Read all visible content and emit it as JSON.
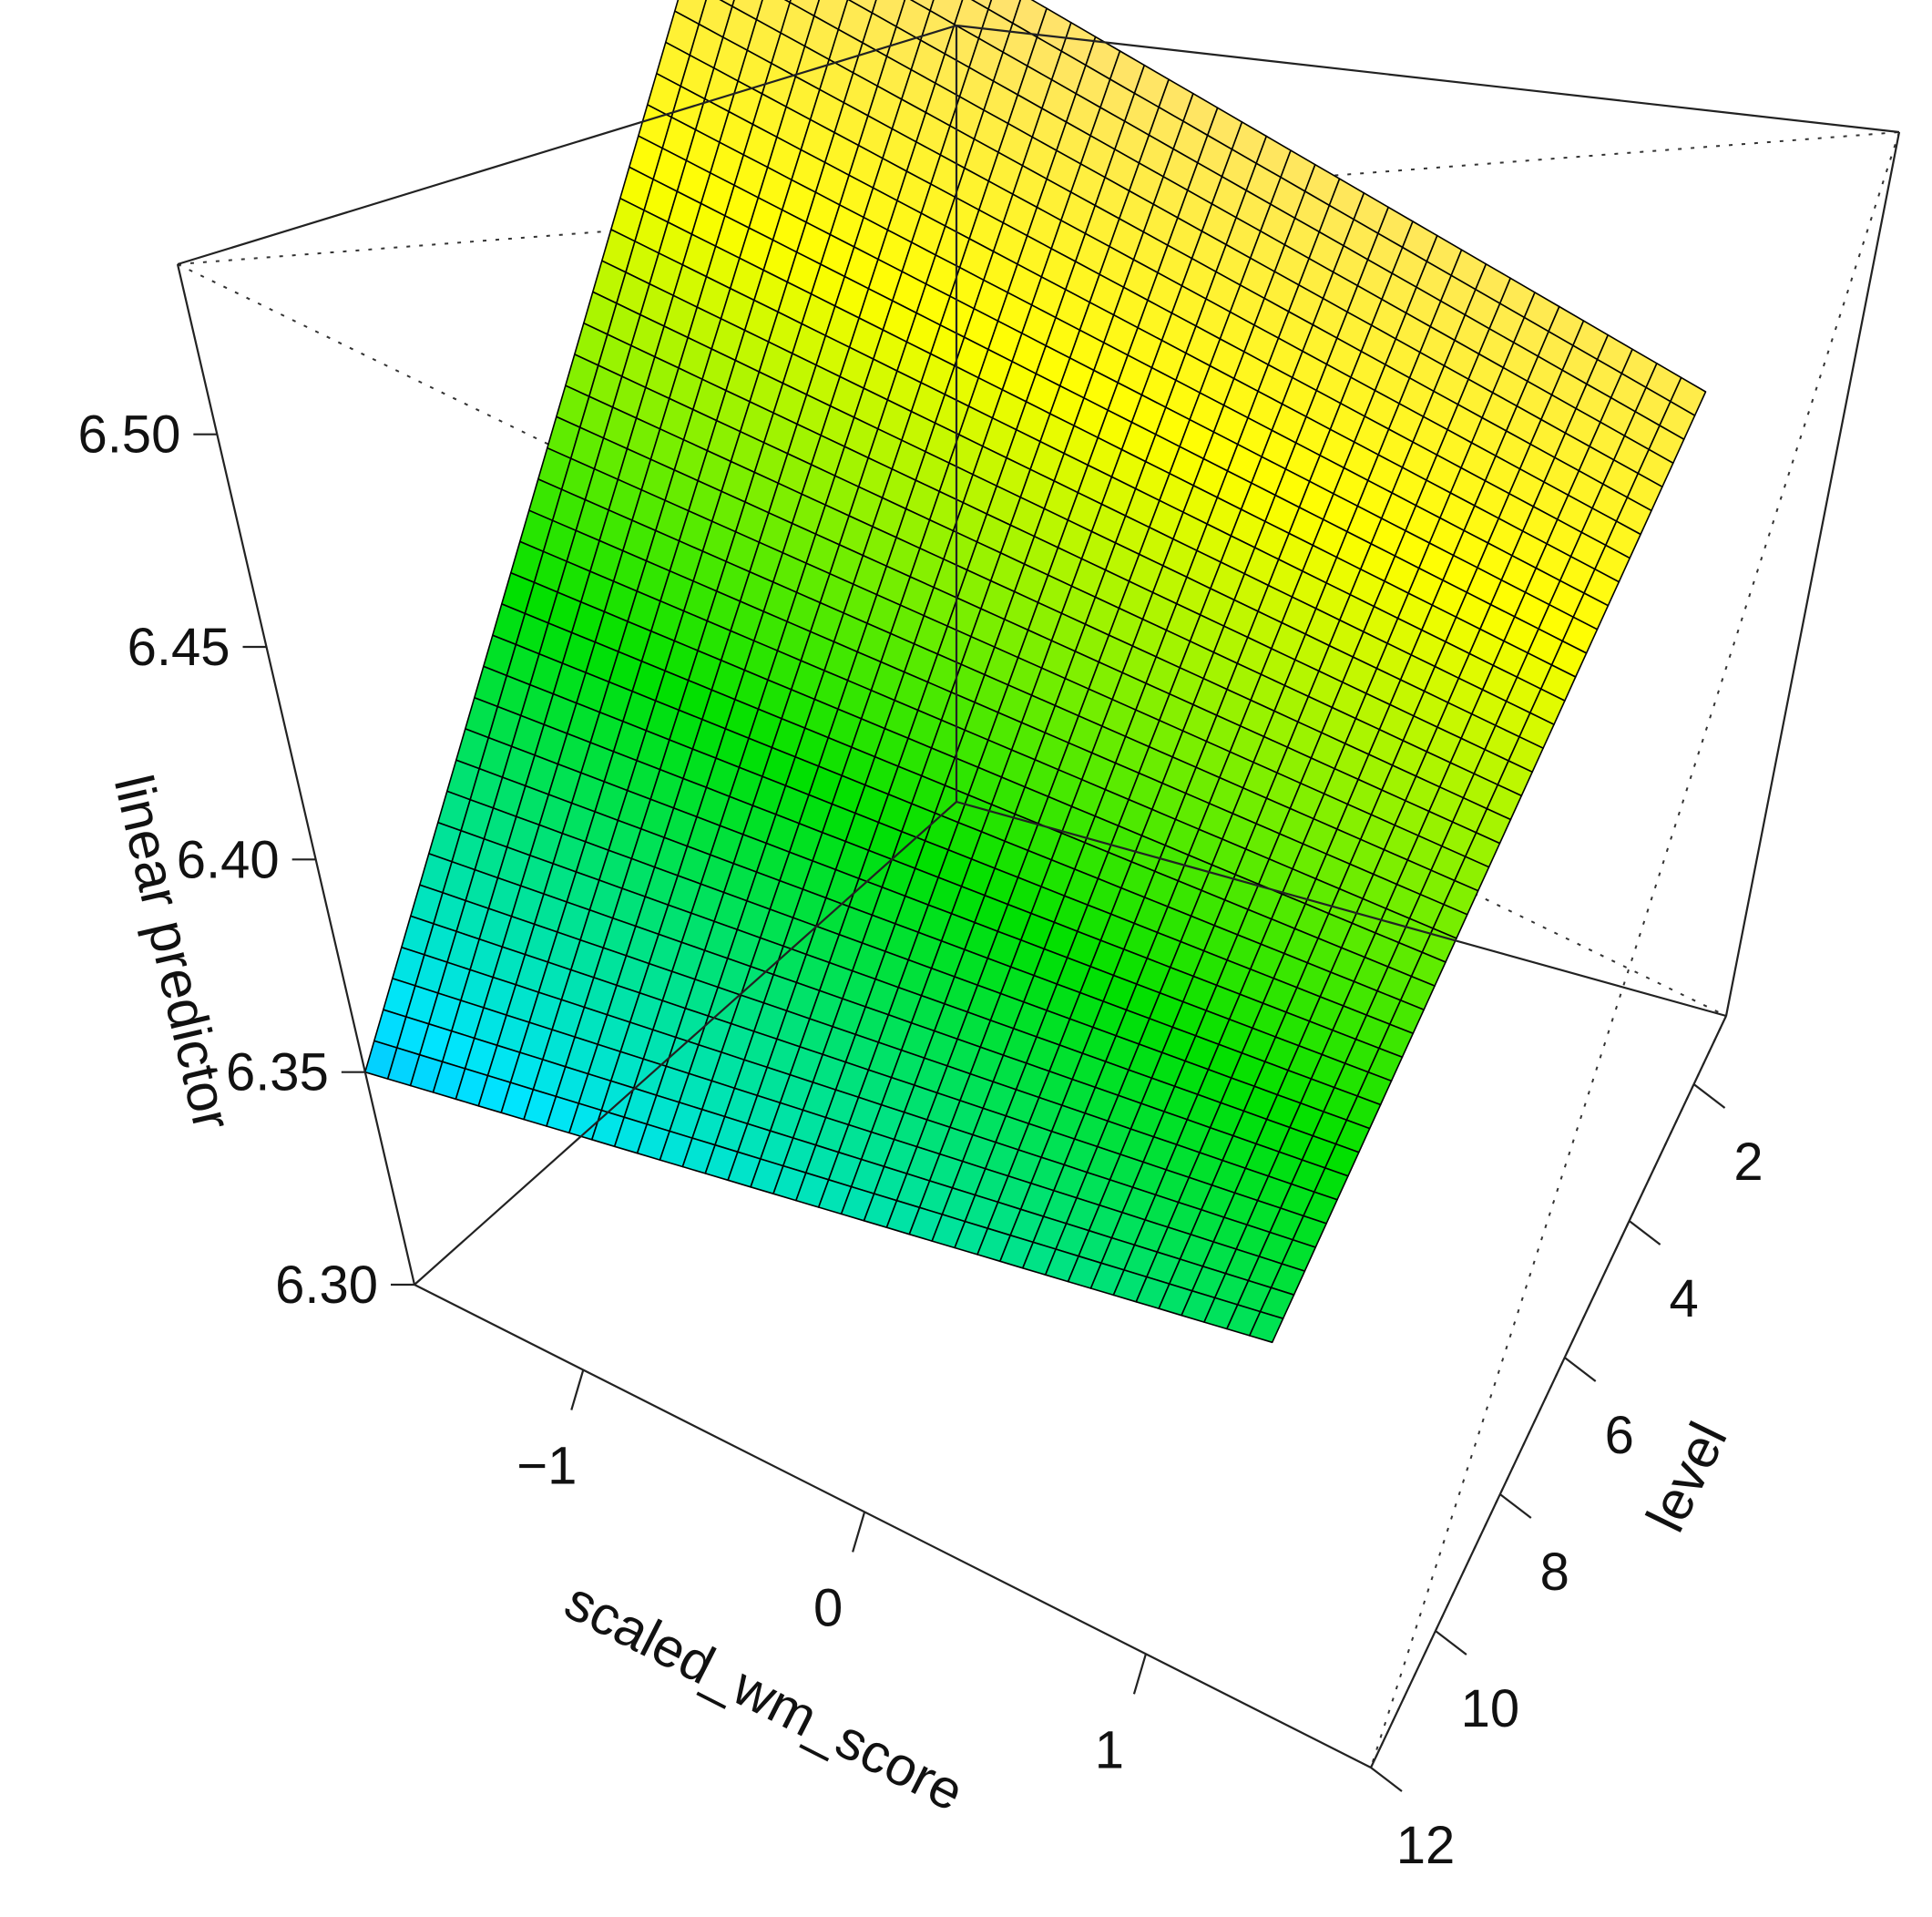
{
  "chart_data": {
    "type": "surface3d",
    "title": "",
    "axes": {
      "x": {
        "label": "scaled_wm_score",
        "ticks": [
          "−1",
          "0",
          "1"
        ],
        "range": [
          -1.6,
          1.8
        ]
      },
      "y": {
        "label": "level",
        "ticks": [
          "2",
          "4",
          "6",
          "8",
          "10",
          "12"
        ],
        "range": [
          1,
          12
        ]
      },
      "z": {
        "label": "linear predictor",
        "ticks": [
          "6.30",
          "6.35",
          "6.40",
          "6.45",
          "6.50"
        ],
        "range": [
          6.3,
          6.54
        ]
      }
    },
    "surface": {
      "colormap": "topo",
      "facet_outline": "#000000",
      "corners": [
        {
          "x": -1.6,
          "y": 12,
          "z": 6.35
        },
        {
          "x": 1.8,
          "y": 12,
          "z": 6.4
        },
        {
          "x": -1.6,
          "y": 1,
          "z": 6.53
        },
        {
          "x": 1.8,
          "y": 1,
          "z": 6.51
        }
      ]
    },
    "colors": [
      "#1a3bff",
      "#00e5ff",
      "#00e000",
      "#ffff00",
      "#ffd79a"
    ]
  }
}
